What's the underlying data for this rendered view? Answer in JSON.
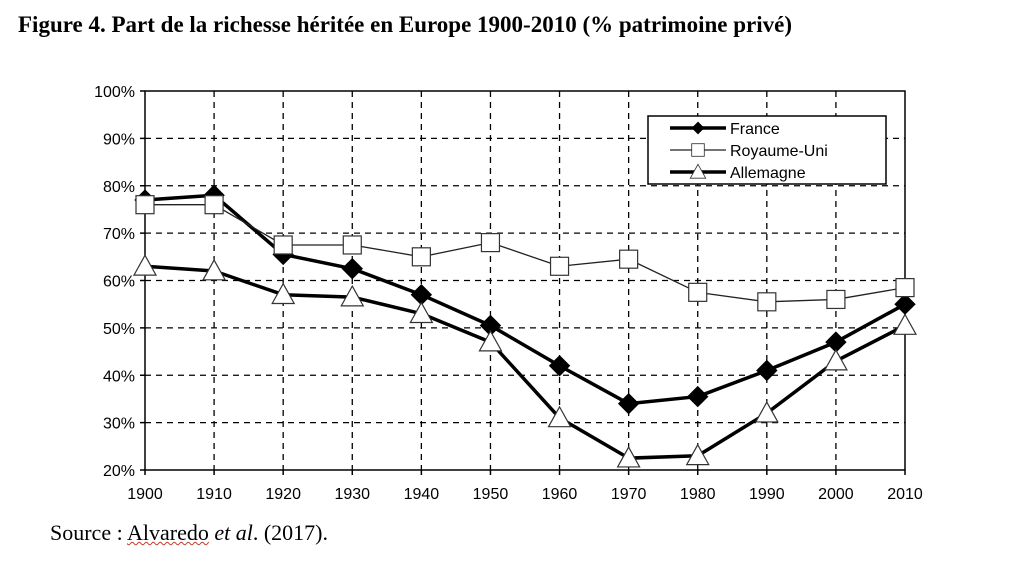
{
  "title": "Figure 4. Part de la richesse héritée en Europe 1900-2010 (% patrimoine privé)",
  "source": {
    "prefix": "Source : ",
    "author": "Alvaredo",
    "etal": " et al",
    "suffix": ". (2017)."
  },
  "chart_data": {
    "type": "line",
    "title": "Figure 4. Part de la richesse héritée en Europe 1900-2010 (% patrimoine privé)",
    "x": [
      1900,
      1910,
      1920,
      1930,
      1940,
      1950,
      1960,
      1970,
      1980,
      1990,
      2000,
      2010
    ],
    "x_tick_labels": [
      "1900",
      "1910",
      "1920",
      "1930",
      "1940",
      "1950",
      "1960",
      "1970",
      "1980",
      "1990",
      "2000",
      "2010"
    ],
    "y_tick_labels": [
      "20%",
      "30%",
      "40%",
      "50%",
      "60%",
      "70%",
      "80%",
      "90%",
      "100%"
    ],
    "ylim": [
      20,
      100
    ],
    "grid": true,
    "legend_position": "top-right",
    "series": [
      {
        "name": "France",
        "marker": "diamond",
        "color": "#000000",
        "values": [
          77,
          78,
          65.5,
          62.5,
          57,
          50.5,
          42,
          34,
          35.5,
          41,
          47,
          55
        ]
      },
      {
        "name": "Royaume-Uni",
        "marker": "square",
        "color": "#000000",
        "values": [
          76,
          76,
          67.5,
          67.5,
          65,
          68,
          63,
          64.5,
          57.5,
          55.5,
          56,
          58.5
        ]
      },
      {
        "name": "Allemagne",
        "marker": "triangle",
        "color": "#000000",
        "values": [
          63,
          62,
          57,
          56.5,
          53,
          47,
          31,
          22.5,
          23,
          32,
          43,
          50.5
        ]
      }
    ]
  }
}
